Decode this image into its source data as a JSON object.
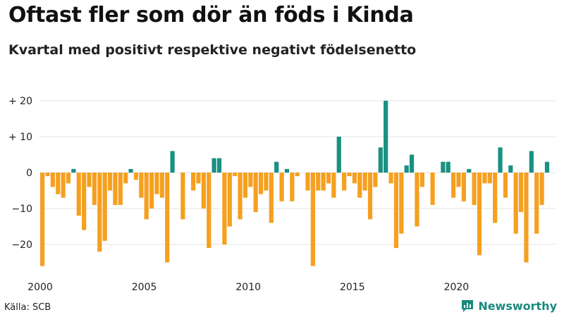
{
  "title": "Oftast fler som dör än föds i Kinda",
  "subtitle": "Kvartal med positivt respektive negativt födelsenetto",
  "source": "Källa: SCB",
  "brand": "Newsworthy",
  "colors": {
    "positive": "#1a9082",
    "negative": "#f5a020",
    "grid": "#e3e3e3",
    "brand": "#1a8a7d"
  },
  "chart_data": {
    "type": "bar",
    "title": "Oftast fler som dör än föds i Kinda",
    "subtitle": "Kvartal med positivt respektive negativt födelsenetto",
    "xlabel": "",
    "ylabel": "Födelsenetto",
    "start_year": 2000,
    "periods_per_year": 4,
    "ylim": [
      -27,
      22
    ],
    "y_ticks": [
      20,
      10,
      0,
      -10,
      -20
    ],
    "y_tick_labels": [
      "+ 20",
      "+ 10",
      "0",
      "−10",
      "−20"
    ],
    "x_tick_labels": [
      "2000",
      "2005",
      "2010",
      "2015",
      "2020"
    ],
    "values": [
      -26,
      -1,
      -4,
      -6,
      -7,
      -3,
      1,
      -12,
      -16,
      -4,
      -9,
      -22,
      -19,
      -5,
      -9,
      -9,
      -3,
      1,
      -2,
      -7,
      -13,
      -10,
      -6,
      -7,
      -25,
      6,
      0,
      -13,
      0,
      -5,
      -3,
      -10,
      -21,
      4,
      4,
      -20,
      -15,
      -1,
      -13,
      -7,
      -4,
      -11,
      -6,
      -5,
      -14,
      3,
      -8,
      1,
      -8,
      -1,
      0,
      -5,
      -26,
      -5,
      -5,
      -3,
      -7,
      10,
      -5,
      -1,
      -3,
      -7,
      -5,
      -13,
      -4,
      7,
      20,
      -3,
      -21,
      -17,
      2,
      5,
      -15,
      -4,
      0,
      -9,
      0,
      3,
      3,
      -7,
      -4,
      -8,
      1,
      -9,
      -23,
      -3,
      -3,
      -14,
      7,
      -7,
      2,
      -17,
      -11,
      -25,
      6,
      -17,
      -9,
      3
    ]
  }
}
